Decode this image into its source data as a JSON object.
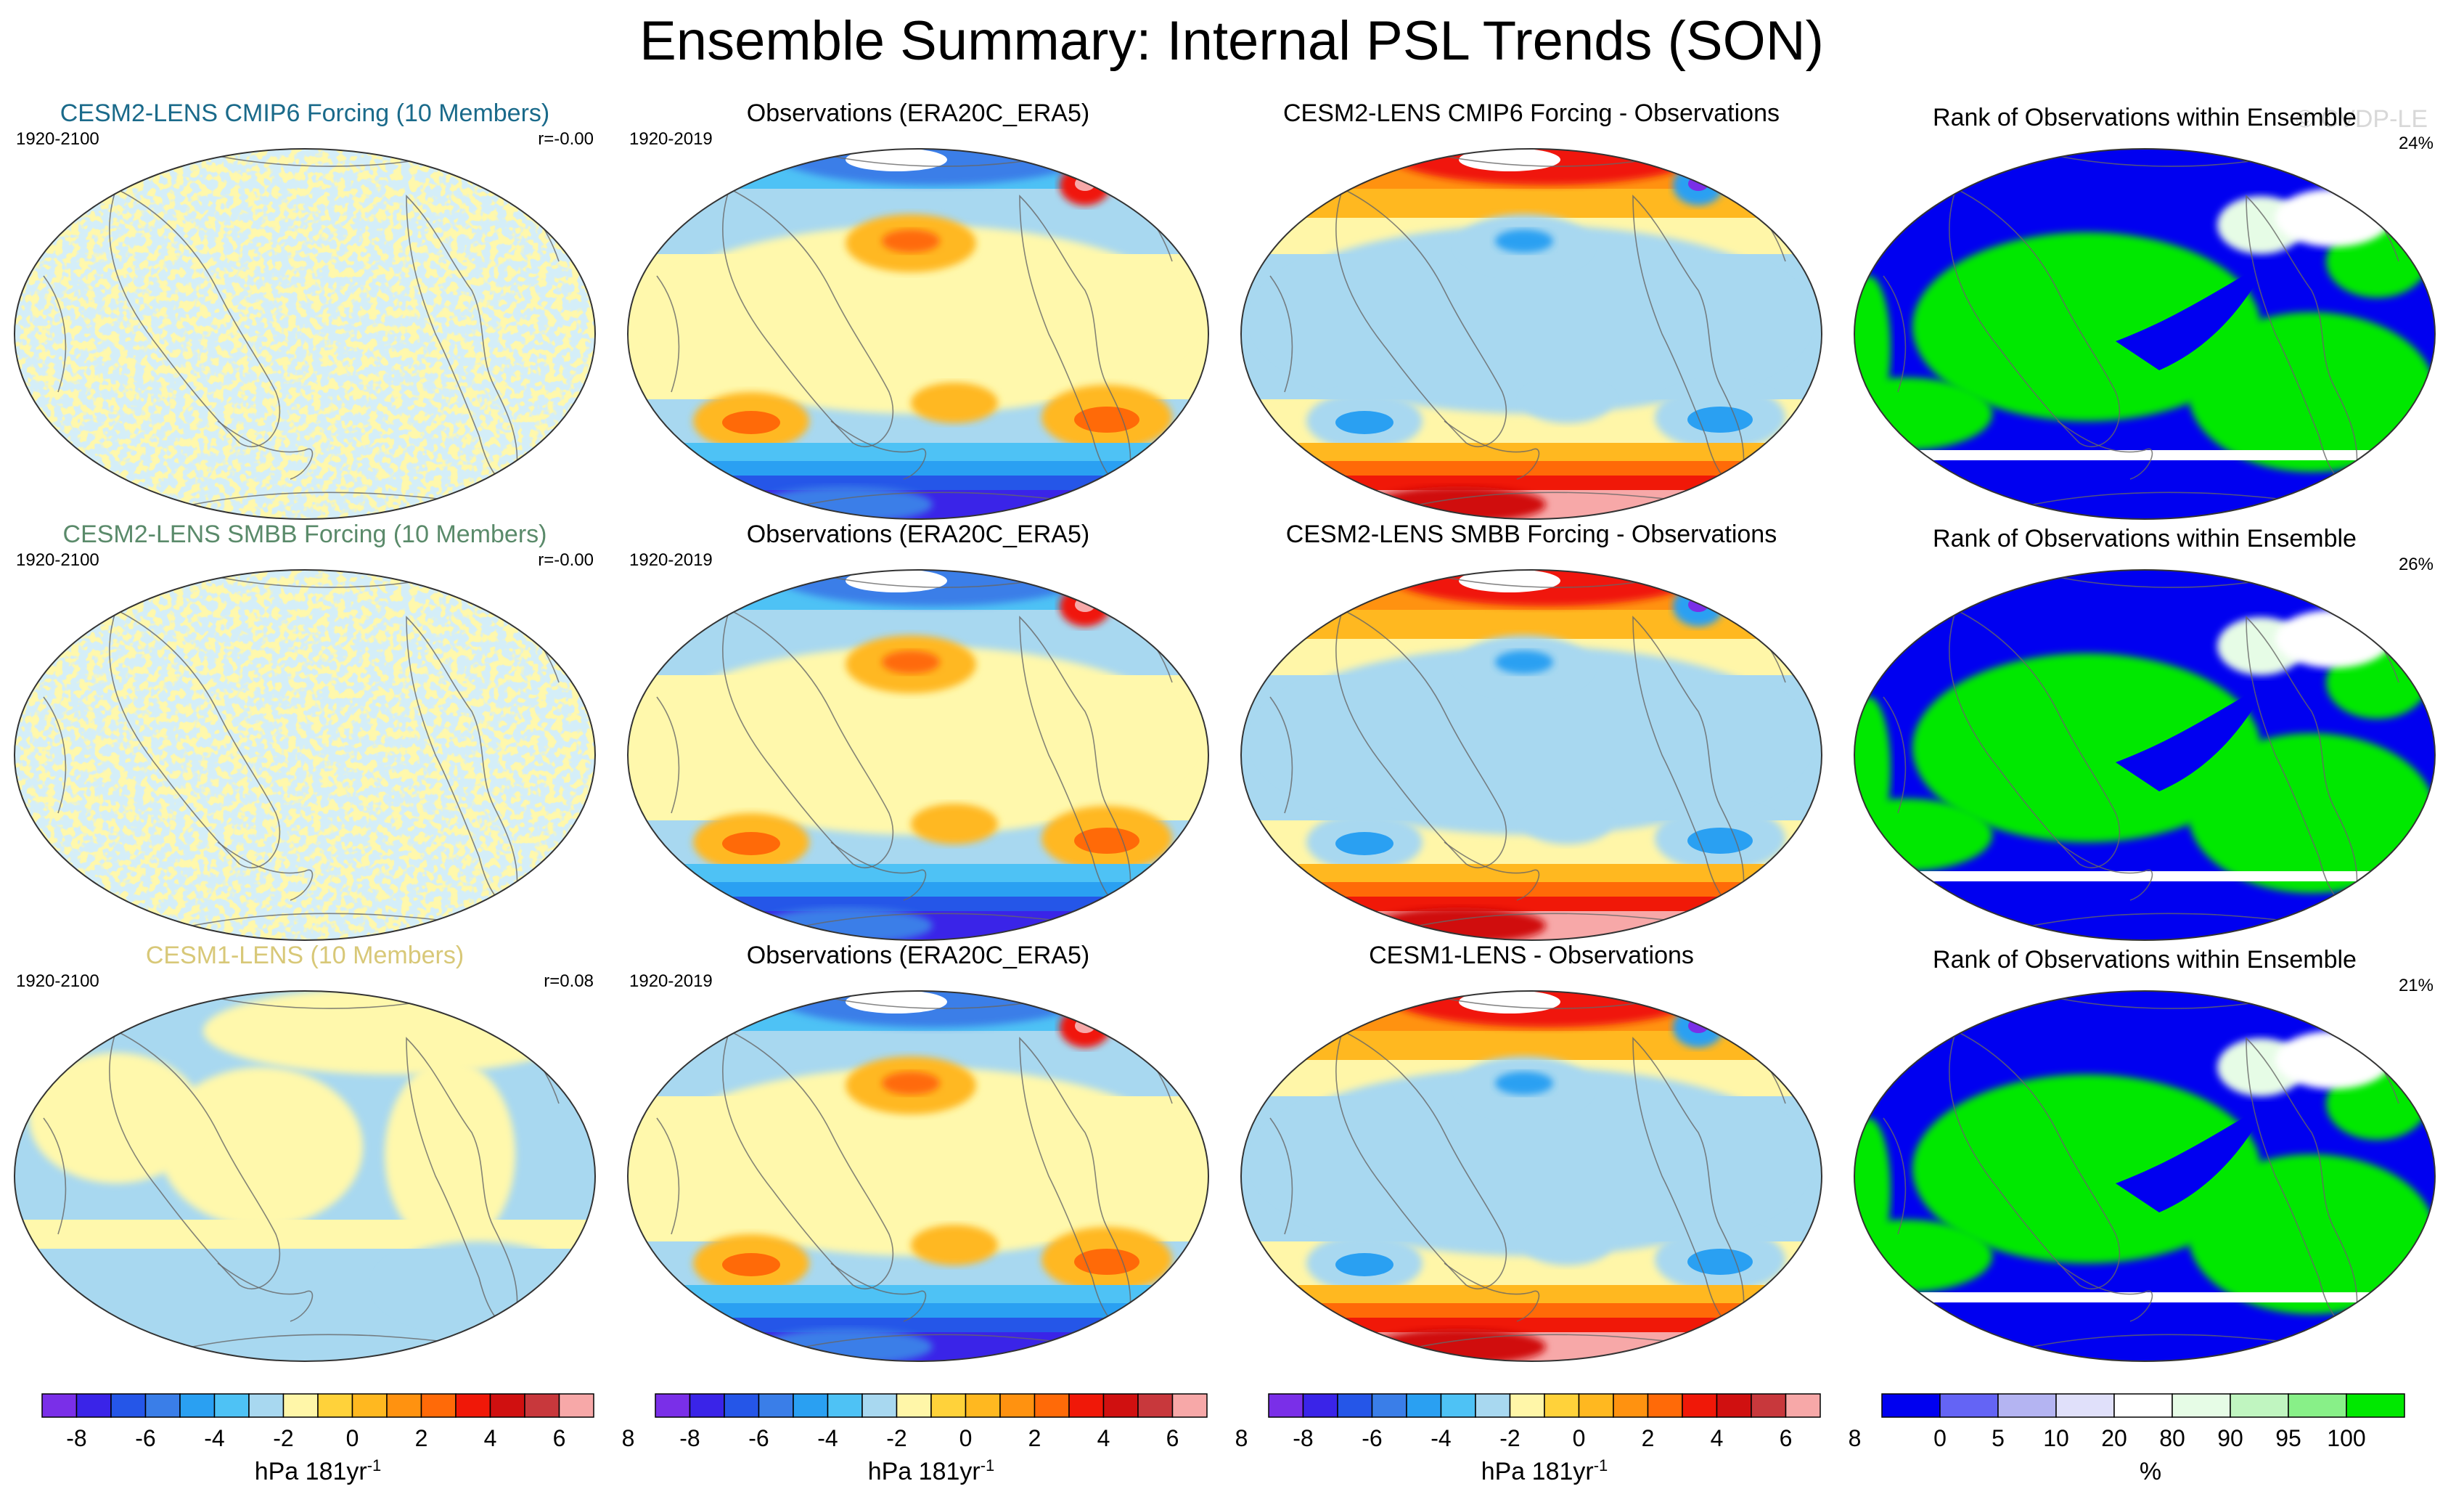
{
  "title": "Ensemble Summary: Internal PSL Trends (SON)",
  "watermark": "© CVDP-LE",
  "colors": {
    "psl_levels": [
      "#7a2fe8",
      "#3a24e8",
      "#2556e8",
      "#3a7ee8",
      "#2aa0f2",
      "#4ec2f5",
      "#a8d8f0",
      "#fff6a8",
      "#ffd23a",
      "#ffb820",
      "#ff9210",
      "#ff6a08",
      "#f01808",
      "#d01010",
      "#c8383c",
      "#f7a8a8"
    ],
    "rank_levels": [
      "#0000f0",
      "#6464f5",
      "#b4b4f2",
      "#e0e0fa",
      "#ffffff",
      "#e6fce6",
      "#c0f5c0",
      "#88f088",
      "#00e800"
    ]
  },
  "rows": [
    {
      "model_title": "CESM2-LENS CMIP6 Forcing (10 Members)",
      "model_title_color": "#1a6a8a",
      "model_period": "1920-2100",
      "model_r": "r=-0.00",
      "obs_title": "Observations (ERA20C_ERA5)",
      "obs_period": "1920-2019",
      "diff_title": "CESM2-LENS CMIP6 Forcing - Observations",
      "rank_title": "Rank of Observations within Ensemble",
      "rank_pct": "24%"
    },
    {
      "model_title": "CESM2-LENS SMBB Forcing (10 Members)",
      "model_title_color": "#5a8a6a",
      "model_period": "1920-2100",
      "model_r": "r=-0.00",
      "obs_title": "Observations (ERA20C_ERA5)",
      "obs_period": "1920-2019",
      "diff_title": "CESM2-LENS SMBB Forcing - Observations",
      "rank_title": "Rank of Observations within Ensemble",
      "rank_pct": "26%"
    },
    {
      "model_title": "CESM1-LENS (10 Members)",
      "model_title_color": "#d8c878",
      "model_period": "1920-2100",
      "model_r": "r=0.08",
      "obs_title": "Observations (ERA20C_ERA5)",
      "obs_period": "1920-2019",
      "diff_title": "CESM1-LENS - Observations",
      "rank_title": "Rank of Observations within Ensemble",
      "rank_pct": "21%"
    }
  ],
  "colorbars": {
    "psl": {
      "ticks": [
        "-8",
        "-6",
        "-4",
        "-2",
        "0",
        "2",
        "4",
        "6",
        "8"
      ],
      "label_main": "hPa 181yr",
      "label_sup": "-1"
    },
    "rank": {
      "ticks": [
        "0",
        "5",
        "10",
        "20",
        "80",
        "90",
        "95",
        "100"
      ],
      "label_main": "%"
    }
  },
  "chart_data": {
    "type": "heatmap",
    "title": "Ensemble Summary: Internal PSL Trends (SON)",
    "projection": "global map panels, 3 rows x 4 columns",
    "panels_per_row": [
      "model ensemble trend",
      "observations trend",
      "model - observations",
      "rank of observations within ensemble"
    ],
    "psl_colorbar": {
      "unit": "hPa 181yr-1",
      "levels": [
        -8,
        -7,
        -6,
        -5,
        -4,
        -3,
        -2,
        -1,
        0,
        1,
        2,
        3,
        4,
        5,
        6,
        7,
        8
      ],
      "tick_labels": [
        -8,
        -6,
        -4,
        -2,
        0,
        2,
        4,
        6,
        8
      ]
    },
    "rank_colorbar": {
      "unit": "%",
      "levels": [
        0,
        5,
        10,
        20,
        80,
        90,
        95,
        100
      ]
    },
    "pattern_correlations": [
      {
        "panel": "CESM2-LENS CMIP6 Forcing (10 Members)",
        "r": -0.0
      },
      {
        "panel": "CESM2-LENS SMBB Forcing (10 Members)",
        "r": -0.0
      },
      {
        "panel": "CESM1-LENS (10 Members)",
        "r": 0.08
      }
    ],
    "rank_area_percent": [
      24,
      26,
      21
    ]
  }
}
